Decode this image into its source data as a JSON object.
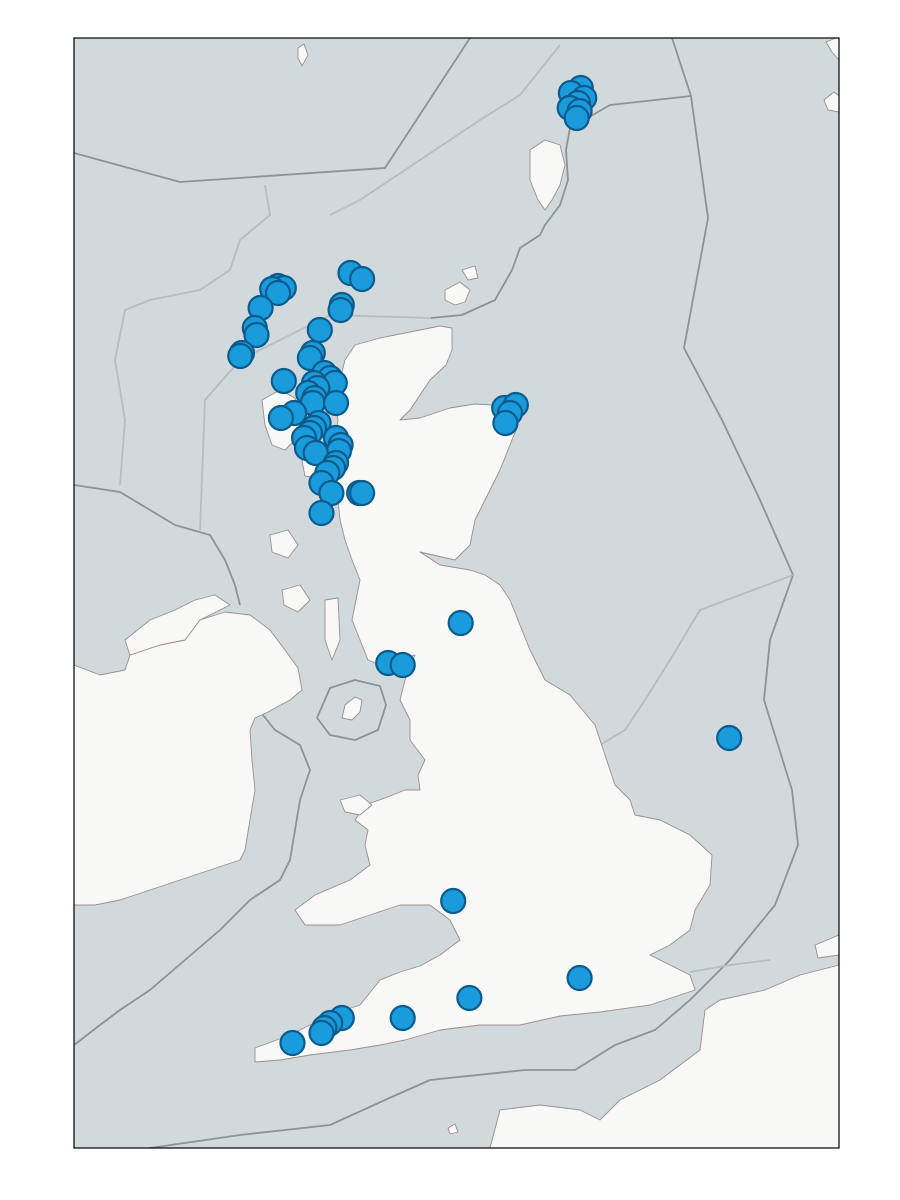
{
  "map": {
    "colors": {
      "sea": "#d1d9dc",
      "land": "#f8f8f7",
      "coastline": "#9b8f8f",
      "boundary": "#8e9295",
      "marker_fill": "#1a9bdc",
      "marker_edge": "#0d5b8c"
    },
    "markers": [
      {
        "lon": -1.28,
        "lat": 60.45
      },
      {
        "lon": -1.45,
        "lat": 60.4
      },
      {
        "lon": -1.22,
        "lat": 60.35
      },
      {
        "lon": -1.33,
        "lat": 60.3
      },
      {
        "lon": -1.47,
        "lat": 60.25
      },
      {
        "lon": -1.3,
        "lat": 60.22
      },
      {
        "lon": -1.35,
        "lat": 60.15
      },
      {
        "lon": -5.25,
        "lat": 58.6
      },
      {
        "lon": -5.05,
        "lat": 58.54
      },
      {
        "lon": -6.5,
        "lat": 58.47
      },
      {
        "lon": -6.4,
        "lat": 58.45
      },
      {
        "lon": -6.6,
        "lat": 58.44
      },
      {
        "lon": -6.5,
        "lat": 58.4
      },
      {
        "lon": -6.8,
        "lat": 58.25
      },
      {
        "lon": -5.4,
        "lat": 58.28
      },
      {
        "lon": -5.42,
        "lat": 58.23
      },
      {
        "lon": -6.9,
        "lat": 58.05
      },
      {
        "lon": -6.87,
        "lat": 57.98
      },
      {
        "lon": -7.12,
        "lat": 57.8
      },
      {
        "lon": -7.15,
        "lat": 57.77
      },
      {
        "lon": -5.78,
        "lat": 58.03
      },
      {
        "lon": -5.9,
        "lat": 57.8
      },
      {
        "lon": -5.95,
        "lat": 57.75
      },
      {
        "lon": -5.7,
        "lat": 57.6
      },
      {
        "lon": -5.6,
        "lat": 57.55
      },
      {
        "lon": -5.52,
        "lat": 57.5
      },
      {
        "lon": -6.4,
        "lat": 57.52
      },
      {
        "lon": -5.88,
        "lat": 57.5
      },
      {
        "lon": -5.82,
        "lat": 57.45
      },
      {
        "lon": -5.98,
        "lat": 57.4
      },
      {
        "lon": -5.87,
        "lat": 57.35
      },
      {
        "lon": -5.9,
        "lat": 57.3
      },
      {
        "lon": -5.5,
        "lat": 57.3
      },
      {
        "lon": -6.22,
        "lat": 57.2
      },
      {
        "lon": -6.45,
        "lat": 57.15
      },
      {
        "lon": -5.8,
        "lat": 57.1
      },
      {
        "lon": -5.88,
        "lat": 57.05
      },
      {
        "lon": -5.95,
        "lat": 57.0
      },
      {
        "lon": -6.05,
        "lat": 56.95
      },
      {
        "lon": -5.5,
        "lat": 56.95
      },
      {
        "lon": -5.42,
        "lat": 56.88
      },
      {
        "lon": -5.45,
        "lat": 56.82
      },
      {
        "lon": -6.0,
        "lat": 56.85
      },
      {
        "lon": -5.85,
        "lat": 56.8
      },
      {
        "lon": -5.5,
        "lat": 56.7
      },
      {
        "lon": -5.55,
        "lat": 56.65
      },
      {
        "lon": -5.65,
        "lat": 56.6
      },
      {
        "lon": -5.75,
        "lat": 56.5
      },
      {
        "lon": -5.58,
        "lat": 56.4
      },
      {
        "lon": -5.1,
        "lat": 56.4
      },
      {
        "lon": -5.05,
        "lat": 56.4
      },
      {
        "lon": -5.75,
        "lat": 56.2
      },
      {
        "lon": -2.6,
        "lat": 57.25
      },
      {
        "lon": -2.4,
        "lat": 57.28
      },
      {
        "lon": -2.5,
        "lat": 57.2
      },
      {
        "lon": -2.58,
        "lat": 57.1
      },
      {
        "lon": -3.35,
        "lat": 55.1
      },
      {
        "lon": -4.6,
        "lat": 54.7
      },
      {
        "lon": -4.35,
        "lat": 54.68
      },
      {
        "lon": 1.28,
        "lat": 53.95
      },
      {
        "lon": -3.48,
        "lat": 52.32
      },
      {
        "lon": -1.3,
        "lat": 51.55
      },
      {
        "lon": -3.2,
        "lat": 51.35
      },
      {
        "lon": -4.35,
        "lat": 51.15
      },
      {
        "lon": -5.4,
        "lat": 51.15
      },
      {
        "lon": -5.6,
        "lat": 51.1
      },
      {
        "lon": -5.7,
        "lat": 51.05
      },
      {
        "lon": -5.75,
        "lat": 51.0
      },
      {
        "lon": -6.25,
        "lat": 50.9
      }
    ]
  }
}
